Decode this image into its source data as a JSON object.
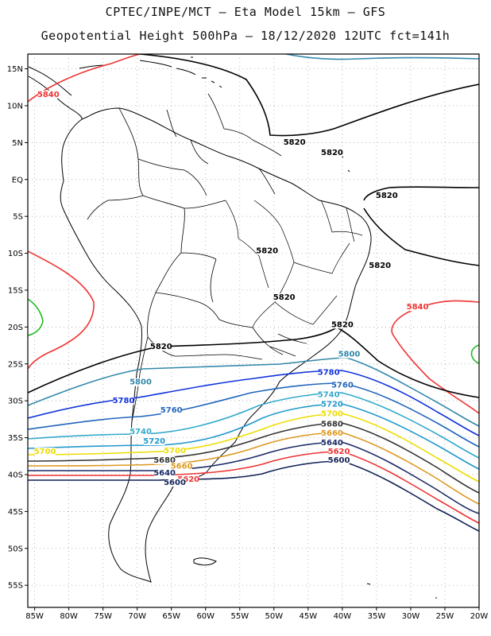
{
  "title_line1": "CPTEC/INPE/MCT –  Eta Model 15km – GFS",
  "title_line2": "Geopotential Height 500hPa – 18/12/2020 12UTC fct=141h",
  "map": {
    "lon_range": [
      -86,
      -20
    ],
    "lat_range": [
      -58,
      17
    ],
    "lat_ticks": [
      {
        "lat": 15,
        "label": "15N"
      },
      {
        "lat": 10,
        "label": "10N"
      },
      {
        "lat": 5,
        "label": "5N"
      },
      {
        "lat": 0,
        "label": "EQ"
      },
      {
        "lat": -5,
        "label": "5S"
      },
      {
        "lat": -10,
        "label": "10S"
      },
      {
        "lat": -15,
        "label": "15S"
      },
      {
        "lat": -20,
        "label": "20S"
      },
      {
        "lat": -25,
        "label": "25S"
      },
      {
        "lat": -30,
        "label": "30S"
      },
      {
        "lat": -35,
        "label": "35S"
      },
      {
        "lat": -40,
        "label": "40S"
      },
      {
        "lat": -45,
        "label": "45S"
      },
      {
        "lat": -50,
        "label": "50S"
      },
      {
        "lat": -55,
        "label": "55S"
      }
    ],
    "lon_ticks": [
      {
        "lon": -85,
        "label": "85W"
      },
      {
        "lon": -80,
        "label": "80W"
      },
      {
        "lon": -75,
        "label": "75W"
      },
      {
        "lon": -70,
        "label": "70W"
      },
      {
        "lon": -65,
        "label": "65W"
      },
      {
        "lon": -60,
        "label": "60W"
      },
      {
        "lon": -55,
        "label": "55W"
      },
      {
        "lon": -50,
        "label": "50W"
      },
      {
        "lon": -45,
        "label": "45W"
      },
      {
        "lon": -40,
        "label": "40W"
      },
      {
        "lon": -35,
        "label": "35W"
      },
      {
        "lon": -30,
        "label": "30W"
      },
      {
        "lon": -25,
        "label": "25W"
      },
      {
        "lon": -20,
        "label": "20W"
      }
    ],
    "contour_levels": [
      {
        "value": "5840",
        "color": "#ee3333"
      },
      {
        "value": "5820",
        "color": "#000000"
      },
      {
        "value": "5800",
        "color": "#3388aa"
      },
      {
        "value": "5780",
        "color": "#1133dd"
      },
      {
        "value": "5760",
        "color": "#2266bb"
      },
      {
        "value": "5740",
        "color": "#33aacc"
      },
      {
        "value": "5720",
        "color": "#2299cc"
      },
      {
        "value": "5700",
        "color": "#eedd00"
      },
      {
        "value": "5680",
        "color": "#333333"
      },
      {
        "value": "5660",
        "color": "#dd9922"
      },
      {
        "value": "5640",
        "color": "#1a2a66"
      },
      {
        "value": "5620",
        "color": "#ee3333"
      },
      {
        "value": "5600",
        "color": "#112255"
      }
    ],
    "contour_labels": [
      {
        "text": "5840",
        "lon": -83,
        "lat": 11.2,
        "color": "#ee3333"
      },
      {
        "text": "5820",
        "lon": -47,
        "lat": 4.7,
        "color": "#000000"
      },
      {
        "text": "5820",
        "lon": -41.5,
        "lat": 3.3,
        "color": "#000000"
      },
      {
        "text": "5820",
        "lon": -33.5,
        "lat": -2.5,
        "color": "#000000"
      },
      {
        "text": "5820",
        "lon": -51,
        "lat": -10,
        "color": "#000000"
      },
      {
        "text": "5820",
        "lon": -34.5,
        "lat": -12,
        "color": "#000000"
      },
      {
        "text": "5820",
        "lon": -48.5,
        "lat": -16.3,
        "color": "#000000"
      },
      {
        "text": "5820",
        "lon": -40,
        "lat": -20,
        "color": "#000000"
      },
      {
        "text": "5820",
        "lon": -66.5,
        "lat": -23,
        "color": "#000000"
      },
      {
        "text": "5840",
        "lon": -29,
        "lat": -17.6,
        "color": "#ee3333"
      },
      {
        "text": "5800",
        "lon": -39,
        "lat": -24,
        "color": "#3388aa"
      },
      {
        "text": "5800",
        "lon": -69.5,
        "lat": -27.8,
        "color": "#3388aa"
      },
      {
        "text": "5780",
        "lon": -42,
        "lat": -26.5,
        "color": "#1133dd"
      },
      {
        "text": "5780",
        "lon": -72,
        "lat": -30.3,
        "color": "#1133dd"
      },
      {
        "text": "5760",
        "lon": -40,
        "lat": -28.2,
        "color": "#2266bb"
      },
      {
        "text": "5760",
        "lon": -65,
        "lat": -31.6,
        "color": "#2266bb"
      },
      {
        "text": "5740",
        "lon": -42,
        "lat": -29.5,
        "color": "#33aacc"
      },
      {
        "text": "5740",
        "lon": -69.5,
        "lat": -34.5,
        "color": "#33aacc"
      },
      {
        "text": "5720",
        "lon": -41.5,
        "lat": -30.8,
        "color": "#2299cc"
      },
      {
        "text": "5720",
        "lon": -67.5,
        "lat": -35.8,
        "color": "#2299cc"
      },
      {
        "text": "5700",
        "lon": -41.5,
        "lat": -32.1,
        "color": "#eedd00"
      },
      {
        "text": "5700",
        "lon": -83.5,
        "lat": -37.2,
        "color": "#eedd00"
      },
      {
        "text": "5700",
        "lon": -64.5,
        "lat": -37.1,
        "color": "#eedd00"
      },
      {
        "text": "5680",
        "lon": -41.5,
        "lat": -33.5,
        "color": "#333333"
      },
      {
        "text": "5680",
        "lon": -66,
        "lat": -38.4,
        "color": "#333333"
      },
      {
        "text": "5660",
        "lon": -41.5,
        "lat": -34.7,
        "color": "#dd9922"
      },
      {
        "text": "5660",
        "lon": -63.5,
        "lat": -39.2,
        "color": "#dd9922"
      },
      {
        "text": "5640",
        "lon": -41.5,
        "lat": -36,
        "color": "#1a2a66"
      },
      {
        "text": "5640",
        "lon": -66,
        "lat": -40.1,
        "color": "#1a2a66"
      },
      {
        "text": "5620",
        "lon": -40.5,
        "lat": -37.2,
        "color": "#ee3333"
      },
      {
        "text": "5620",
        "lon": -62.5,
        "lat": -41,
        "color": "#ee3333"
      },
      {
        "text": "5600",
        "lon": -40.5,
        "lat": -38.4,
        "color": "#112255"
      },
      {
        "text": "5600",
        "lon": -64.5,
        "lat": -41.4,
        "color": "#112255"
      }
    ]
  }
}
